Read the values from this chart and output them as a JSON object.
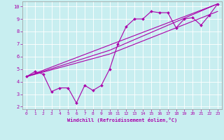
{
  "xlabel": "Windchill (Refroidissement éolien,°C)",
  "bg_color": "#c8eef0",
  "line_color": "#aa00aa",
  "grid_color": "#b0d8dc",
  "xlim": [
    -0.5,
    23.5
  ],
  "ylim": [
    1.8,
    10.4
  ],
  "xticks": [
    0,
    1,
    2,
    3,
    4,
    5,
    6,
    7,
    8,
    9,
    10,
    11,
    12,
    13,
    14,
    15,
    16,
    17,
    18,
    19,
    20,
    21,
    22,
    23
  ],
  "yticks": [
    2,
    3,
    4,
    5,
    6,
    7,
    8,
    9,
    10
  ],
  "series1_x": [
    0,
    1,
    2,
    3,
    4,
    5,
    6,
    7,
    8,
    9,
    10,
    11,
    12,
    13,
    14,
    15,
    16,
    17,
    18,
    19,
    20,
    21,
    22,
    23
  ],
  "series1_y": [
    4.4,
    4.8,
    4.6,
    3.2,
    3.5,
    3.5,
    2.3,
    3.7,
    3.3,
    3.7,
    5.0,
    7.0,
    8.4,
    9.0,
    9.0,
    9.6,
    9.5,
    9.5,
    8.3,
    9.0,
    9.1,
    8.5,
    9.3,
    10.2
  ],
  "series2_x": [
    0,
    23
  ],
  "series2_y": [
    4.4,
    10.2
  ],
  "series3_x": [
    0,
    10,
    23
  ],
  "series3_y": [
    4.4,
    6.5,
    10.2
  ],
  "series4_x": [
    0,
    10,
    23
  ],
  "series4_y": [
    4.4,
    6.2,
    9.6
  ]
}
